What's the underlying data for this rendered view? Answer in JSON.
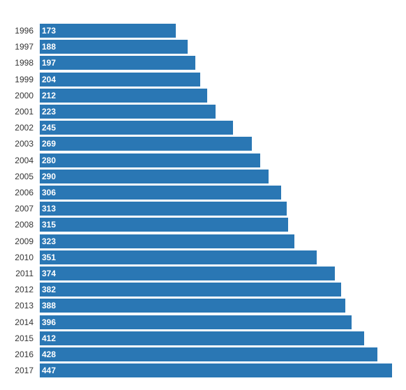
{
  "chart_data": {
    "type": "bar",
    "orientation": "horizontal",
    "categories": [
      "1996",
      "1997",
      "1998",
      "1999",
      "2000",
      "2001",
      "2002",
      "2003",
      "2004",
      "2005",
      "2006",
      "2007",
      "2008",
      "2009",
      "2010",
      "2011",
      "2012",
      "2013",
      "2014",
      "2015",
      "2016",
      "2017"
    ],
    "values": [
      173,
      188,
      197,
      204,
      212,
      223,
      245,
      269,
      280,
      290,
      306,
      313,
      315,
      323,
      351,
      374,
      382,
      388,
      396,
      412,
      428,
      447
    ],
    "title": "",
    "xlabel": "",
    "ylabel": "",
    "xlim": [
      0,
      447
    ],
    "grid": false,
    "legend": "none",
    "bar_color": "#2a77b4",
    "value_label_color": "#ffffff"
  }
}
